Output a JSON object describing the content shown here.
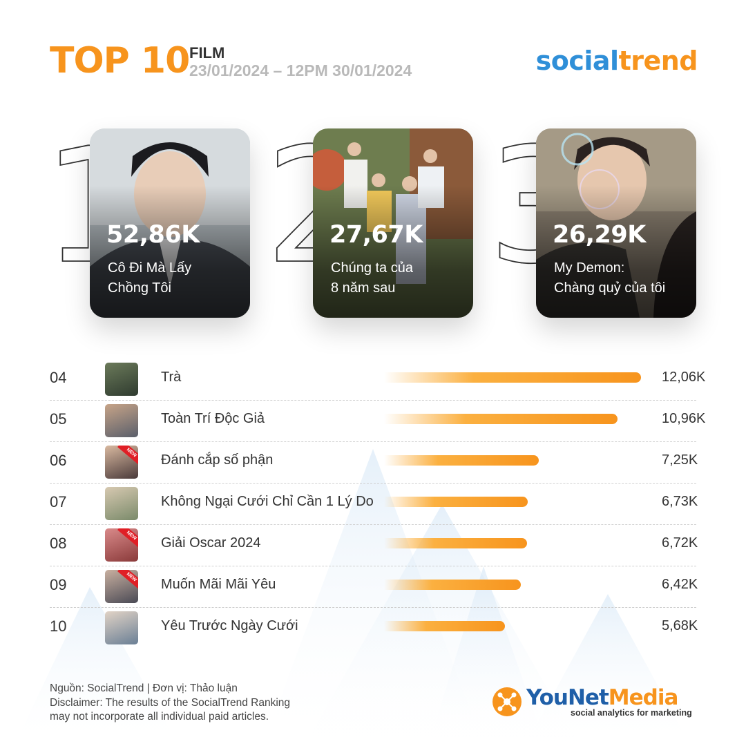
{
  "header": {
    "title": "TOP 10",
    "category": "FILM",
    "date_range": "23/01/2024 – 12PM 30/01/2024",
    "brand_part1": "social",
    "brand_part2": "trend"
  },
  "colors": {
    "accent": "#f7941d",
    "brand_blue": "#2f8fd8",
    "bar_light": "#fbb040",
    "new_badge": "#e01f26"
  },
  "podium": [
    {
      "rank_digit": "1",
      "value_label": "52,86K",
      "title_line1": "Cô Đi Mà Lấy",
      "title_line2": "Chồng Tôi"
    },
    {
      "rank_digit": "2",
      "value_label": "27,67K",
      "title_line1": "Chúng ta của",
      "title_line2": "8 năm sau"
    },
    {
      "rank_digit": "3",
      "value_label": "26,29K",
      "title_line1": "My Demon:",
      "title_line2": "Chàng quỷ của tôi"
    }
  ],
  "list": [
    {
      "rank": "04",
      "name": "Trà",
      "value_label": "12,06K",
      "badge": ""
    },
    {
      "rank": "05",
      "name": "Toàn Trí Độc Giả",
      "value_label": "10,96K",
      "badge": ""
    },
    {
      "rank": "06",
      "name": "Đánh cắp số phận",
      "value_label": "7,25K",
      "badge": "NEW"
    },
    {
      "rank": "07",
      "name": "Không Ngại Cưới Chỉ Cần 1 Lý Do",
      "value_label": "6,73K",
      "badge": ""
    },
    {
      "rank": "08",
      "name": "Giải Oscar 2024",
      "value_label": "6,72K",
      "badge": "NEW"
    },
    {
      "rank": "09",
      "name": "Muốn Mãi Mãi Yêu",
      "value_label": "6,42K",
      "badge": "NEW"
    },
    {
      "rank": "10",
      "name": "Yêu Trước Ngày Cưới",
      "value_label": "5,68K",
      "badge": ""
    }
  ],
  "chart_data": {
    "type": "bar",
    "categories": [
      "Cô Đi Mà Lấy Chồng Tôi",
      "Chúng ta của 8 năm sau",
      "My Demon: Chàng quỷ của tôi",
      "Trà",
      "Toàn Trí Độc Giả",
      "Đánh cắp số phận",
      "Không Ngại Cưới Chỉ Cần 1 Lý Do",
      "Giải Oscar 2024",
      "Muốn Mãi Mãi Yêu",
      "Yêu Trước Ngày Cưới"
    ],
    "values": [
      52860,
      27670,
      26290,
      12060,
      10960,
      7250,
      6730,
      6720,
      6420,
      5680
    ],
    "title": "TOP 10",
    "subtitle": "FILM",
    "xlabel": "",
    "ylabel": "",
    "grid": false,
    "legend": "none"
  },
  "footer": {
    "line1": "Nguồn: SocialTrend |  Đơn vị: Thảo luận",
    "line2": "Disclaimer: The results of the SocialTrend Ranking",
    "line3": "may not incorporate all individual paid articles.",
    "ynm_part1": "YouNet",
    "ynm_part2": "Media",
    "ynm_tagline": "social analytics for marketing"
  }
}
